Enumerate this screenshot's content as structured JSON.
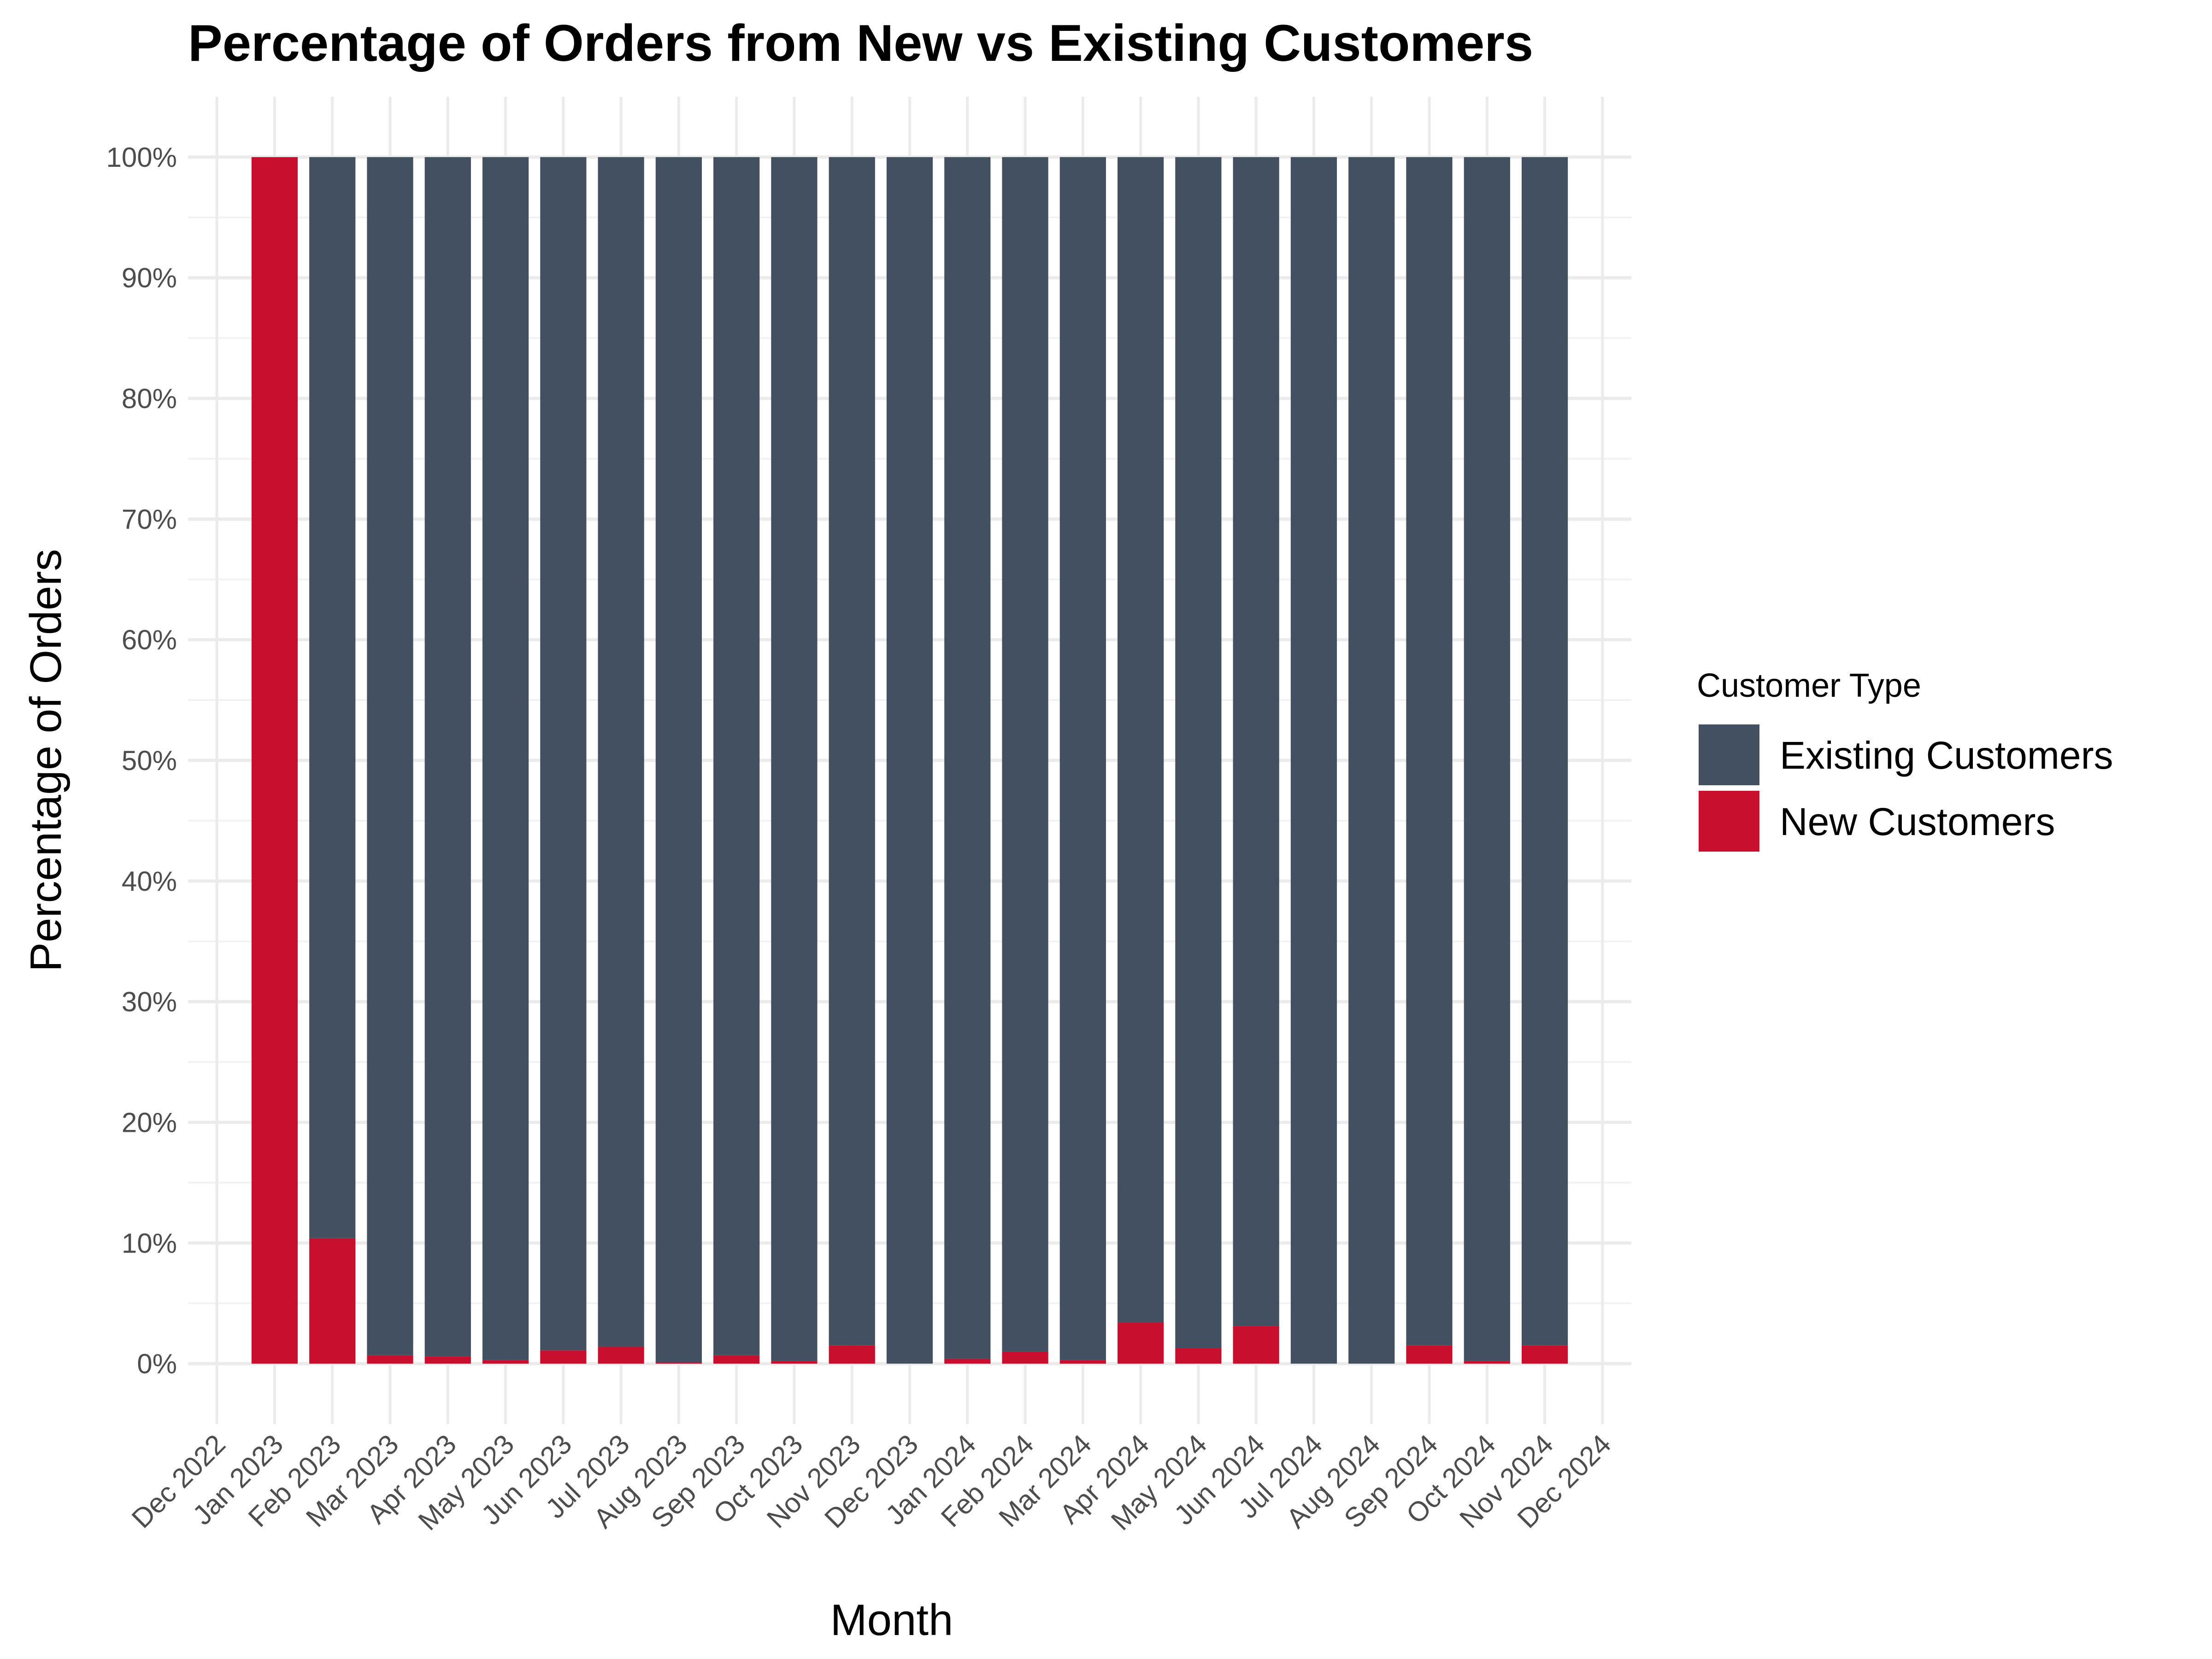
{
  "chart_data": {
    "type": "bar",
    "stacked": true,
    "title": "Percentage of Orders from New vs Existing Customers",
    "xlabel": "Month",
    "ylabel": "Percentage of Orders",
    "x_tick_labels": [
      "Dec 2022",
      "Jan 2023",
      "Feb 2023",
      "Mar 2023",
      "Apr 2023",
      "May 2023",
      "Jun 2023",
      "Jul 2023",
      "Aug 2023",
      "Sep 2023",
      "Oct 2023",
      "Nov 2023",
      "Dec 2023",
      "Jan 2024",
      "Feb 2024",
      "Mar 2024",
      "Apr 2024",
      "May 2024",
      "Jun 2024",
      "Jul 2024",
      "Aug 2024",
      "Sep 2024",
      "Oct 2024",
      "Nov 2024",
      "Dec 2024"
    ],
    "categories": [
      "Jan 2023",
      "Feb 2023",
      "Mar 2023",
      "Apr 2023",
      "May 2023",
      "Jun 2023",
      "Jul 2023",
      "Aug 2023",
      "Sep 2023",
      "Oct 2023",
      "Nov 2023",
      "Dec 2023",
      "Jan 2024",
      "Feb 2024",
      "Mar 2024",
      "Apr 2024",
      "May 2024",
      "Jun 2024",
      "Jul 2024",
      "Aug 2024",
      "Sep 2024",
      "Oct 2024",
      "Nov 2024"
    ],
    "series": [
      {
        "name": "New Customers",
        "color": "#c8102e",
        "values": [
          100,
          10.4,
          0.7,
          0.6,
          0.3,
          1.1,
          1.4,
          0.1,
          0.7,
          0.2,
          1.5,
          0.0,
          0.4,
          1.0,
          0.3,
          3.4,
          1.3,
          3.1,
          0.0,
          0.0,
          1.5,
          0.2,
          1.5
        ]
      },
      {
        "name": "Existing Customers",
        "color": "#435061",
        "values": [
          0,
          89.6,
          99.3,
          99.4,
          99.7,
          98.9,
          98.6,
          99.9,
          99.3,
          99.8,
          98.5,
          100.0,
          99.6,
          99.0,
          99.7,
          96.6,
          98.7,
          96.9,
          100.0,
          100.0,
          98.5,
          99.8,
          98.5
        ]
      }
    ],
    "y_ticks": [
      0,
      10,
      20,
      30,
      40,
      50,
      60,
      70,
      80,
      90,
      100
    ],
    "y_tick_labels": [
      "0%",
      "10%",
      "20%",
      "30%",
      "40%",
      "50%",
      "60%",
      "70%",
      "80%",
      "90%",
      "100%"
    ],
    "ylim": [
      -5,
      105
    ],
    "grid": true,
    "legend": {
      "title": "Customer Type",
      "position": "right",
      "entries": [
        {
          "label": "Existing Customers",
          "color": "#435061"
        },
        {
          "label": "New Customers",
          "color": "#c8102e"
        }
      ]
    }
  }
}
